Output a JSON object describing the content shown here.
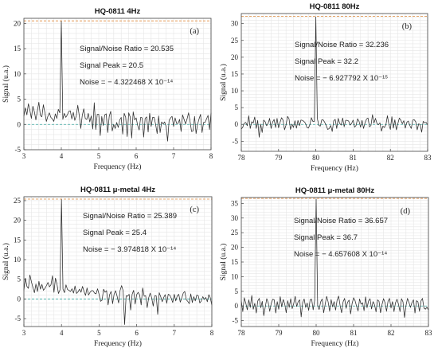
{
  "chart_data": [
    {
      "type": "line",
      "title": "HQ-0811 4Hz",
      "panel_label": "(a)",
      "xlabel": "Frequency (Hz)",
      "ylabel": "Signal (u.a.)",
      "xlim": [
        3,
        8
      ],
      "ylim": [
        -5,
        21
      ],
      "xticks": [
        "3",
        "4",
        "5",
        "6",
        "7",
        "8"
      ],
      "yticks": [
        "-5",
        "0",
        "5",
        "10",
        "15",
        "20"
      ],
      "yticks_values": [
        -5,
        0,
        5,
        10,
        15,
        20
      ],
      "grid": true,
      "annotations": [
        "Signal/Noise Ratio = 20.535",
        "Signal Peak = 20.5",
        "Noise = − 4.322468 X 10⁻¹⁴"
      ],
      "peak_line": 20.5,
      "noise_line": 0,
      "series": [
        {
          "x_start": 3,
          "x_step": 0.04,
          "values": [
            1.6,
            3.3,
            1.9,
            4.1,
            2.8,
            1.2,
            3.6,
            2.5,
            0.9,
            2.7,
            4.4,
            1.8,
            1.5,
            3.9,
            2.4,
            0.6,
            1.6,
            2.3,
            1.4,
            1.1,
            0.6,
            2.1,
            1.2,
            3.0,
            2.3,
            20.4,
            1.0,
            2.2,
            1.4,
            1.9,
            2.6,
            2.7,
            1.1,
            2.4,
            0.8,
            1.7,
            3.8,
            1.7,
            -0.8,
            1.8,
            3.1,
            1.2,
            1.0,
            2.2,
            0.5,
            1.7,
            -0.9,
            4.3,
            -1.0,
            2.0,
            2.0,
            -2.2,
            1.6,
            -0.2,
            1.9,
            2.1,
            -1.6,
            1.6,
            2.6,
            -1.3,
            0.0,
            -0.8,
            0.4,
            -0.6,
            0.9,
            1.4,
            -1.9,
            2.2,
            1.4,
            -2.4,
            2.3,
            1.5,
            -2.7,
            2.5,
            0.9,
            1.3,
            -0.2,
            -1.1,
            1.4,
            1.3,
            -2.5,
            1.2,
            1.5,
            -1.5,
            2.2,
            -0.4,
            1.4,
            1.4,
            0.0,
            -1.8,
            1.7,
            -1.6,
            0.5,
            0.1,
            0.5,
            -0.4,
            -3.3,
            0.8,
            1.3,
            1.6,
            -0.4,
            1.3,
            0.2,
            0.2,
            1.0,
            -1.4,
            1.9,
            1.0,
            0.1,
            1.1,
            2.3,
            0.6,
            -1.4,
            -1.3,
            1.6,
            -1.8,
            0.0,
            1.1,
            2.0,
            -1.6,
            0.4,
            0.4,
            1.1,
            1.8,
            -1.0,
            2.3
          ]
        }
      ]
    },
    {
      "type": "line",
      "title": "HQ-0811 80Hz",
      "panel_label": "(b)",
      "xlabel": "Frequency (Hz)",
      "ylabel": "Signal (u.a.)",
      "xlim": [
        78,
        83
      ],
      "ylim": [
        -8,
        33
      ],
      "xticks": [
        "78",
        "79",
        "80",
        "81",
        "82",
        "83"
      ],
      "yticks": [
        "-5",
        "0",
        "5",
        "10",
        "15",
        "20",
        "25",
        "30"
      ],
      "yticks_values": [
        -5,
        0,
        5,
        10,
        15,
        20,
        25,
        30
      ],
      "grid": true,
      "annotations": [
        "Signal/Noise Ratio = 32.236",
        "Signal Peak = 32.2",
        "Noise = − 6.927792 X 10⁻¹⁵"
      ],
      "peak_line": 32.2,
      "noise_line": 0,
      "series": [
        {
          "x_start": 78,
          "x_step": 0.04,
          "values": [
            -1.4,
            -0.8,
            0.4,
            0.6,
            -0.4,
            2.6,
            -1.2,
            0.8,
            0.4,
            2.2,
            -1.2,
            1.2,
            -3.8,
            0.1,
            -2.4,
            1.3,
            0.8,
            -0.4,
            0.3,
            1.8,
            -1.2,
            0.7,
            1.5,
            -0.9,
            1.8,
            -1.0,
            0.6,
            2.0,
            1.3,
            -1.6,
            -0.2,
            2.4,
            1.7,
            -1.5,
            0.1,
            -0.9,
            1.1,
            -1.1,
            1.2,
            -0.4,
            1.3,
            1.2,
            0.9,
            0.4,
            -0.9,
            -1.1,
            -0.1,
            2.0,
            0.9,
            0.9,
            32.0,
            1.8,
            -0.3,
            -0.5,
            1.4,
            1.3,
            0.6,
            -0.4,
            -1.5,
            -1.2,
            -0.3,
            -2.1,
            1.1,
            1.5,
            -1.2,
            1.8,
            0.3,
            -0.2,
            1.9,
            -0.7,
            1.2,
            1.2,
            1.0,
            -0.2,
            0.3,
            1.3,
            -0.8,
            -0.3,
            1.7,
            0.9,
            -0.8,
            1.2,
            -1.2,
            0.5,
            1.6,
            1.9,
            -0.7,
            -0.3,
            2.9,
            0.4,
            1.8,
            0.3,
            -0.1,
            0.5,
            -2.0,
            -0.5,
            -0.9,
            -0.1,
            2.6,
            0.0,
            -1.5,
            2.3,
            -1.1,
            1.4,
            -1.6,
            0.2,
            1.9,
            1.3,
            0.2,
            1.1,
            -1.1,
            0.6,
            1.0,
            -0.3,
            -1.2,
            1.3,
            1.4,
            0.8,
            -1.6,
            0.2,
            -0.1,
            -2.3,
            0.9,
            0.5,
            0.6,
            -0.2
          ]
        }
      ]
    },
    {
      "type": "line",
      "title": "HQ-0811 μ-metal 4Hz",
      "panel_label": "(c)",
      "xlabel": "Frequency (Hz)",
      "ylabel": "Signal (u.a.)",
      "xlim": [
        3,
        8
      ],
      "ylim": [
        -7,
        26
      ],
      "xticks": [
        "3",
        "4",
        "5",
        "6",
        "7",
        "8"
      ],
      "yticks": [
        "-5",
        "0",
        "5",
        "10",
        "15",
        "20",
        "25"
      ],
      "yticks_values": [
        -5,
        0,
        5,
        10,
        15,
        20,
        25
      ],
      "grid": true,
      "annotations": [
        "Signal/Noise Ratio = 25.389",
        "Signal Peak = 25.4",
        "Noise = − 3.974818 X 10⁻¹⁴"
      ],
      "peak_line": 25.4,
      "noise_line": 0,
      "series": [
        {
          "x_start": 3,
          "x_step": 0.04,
          "values": [
            2.2,
            5.3,
            3.2,
            2.7,
            6.1,
            4.4,
            2.9,
            1.6,
            3.8,
            1.9,
            4.5,
            2.5,
            3.7,
            2.2,
            2.7,
            3.4,
            4.2,
            3.1,
            3.6,
            5.9,
            1.7,
            5.3,
            3.8,
            1.4,
            2.3,
            25.3,
            2.5,
            1.6,
            3.6,
            2.4,
            2.2,
            1.9,
            2.6,
            1.5,
            3.3,
            1.4,
            1.8,
            2.5,
            1.7,
            3.2,
            1.9,
            0.9,
            2.8,
            1.0,
            1.7,
            2.1,
            2.1,
            1.5,
            1.3,
            2.6,
            1.2,
            -0.6,
            -0.3,
            2.5,
            1.7,
            2.1,
            -1.5,
            1.1,
            1.9,
            -1.2,
            1.2,
            2.1,
            0.7,
            -1.0,
            2.2,
            3.4,
            2.1,
            -6.5,
            0.8,
            0.7,
            1.2,
            -2.8,
            1.2,
            2.2,
            -1.3,
            1.1,
            1.7,
            1.0,
            -1.5,
            2.8,
            0.7,
            0.8,
            -2.2,
            0.3,
            1.5,
            0.3,
            -1.8,
            0.8,
            0.8,
            -3.9,
            1.6,
            0.6,
            -0.7,
            0.4,
            1.1,
            -1.1,
            1.2,
            1.0,
            0.2,
            -0.9,
            1.2,
            -0.5,
            0.8,
            1.2,
            -0.8,
            0.2,
            1.5,
            1.9,
            -0.2,
            -0.6,
            -1.2,
            1.3,
            -0.9,
            0.6,
            -0.5,
            1.0,
            0.8,
            -1.0,
            -0.5,
            0.6,
            -0.1,
            0.4,
            -0.7,
            1.1,
            0.3,
            -1.6
          ]
        }
      ]
    },
    {
      "type": "line",
      "title": "HQ-0811 μ-metal 80Hz",
      "panel_label": "(d)",
      "xlabel": "Frequency (Hz)",
      "ylabel": "Signal (u.a.)",
      "xlim": [
        78,
        83
      ],
      "ylim": [
        -7,
        37
      ],
      "xticks": [
        "78",
        "79",
        "80",
        "81",
        "82",
        "83"
      ],
      "yticks": [
        "-5",
        "0",
        "5",
        "10",
        "15",
        "20",
        "25",
        "30",
        "35"
      ],
      "yticks_values": [
        -5,
        0,
        5,
        10,
        15,
        20,
        25,
        30,
        35
      ],
      "grid": true,
      "annotations": [
        "Signal/Noise Ratio = 36.657",
        "Signal Peak = 36.7",
        "Noise = − 4.657608 X 10⁻¹⁴"
      ],
      "peak_line": 36.7,
      "noise_line": 0,
      "series": [
        {
          "x_start": 78,
          "x_step": 0.04,
          "values": [
            1.8,
            -1.9,
            2.8,
            1.0,
            -1.3,
            2.1,
            -0.5,
            3.6,
            -1.1,
            0.9,
            -2.4,
            1.7,
            2.6,
            -0.6,
            1.6,
            -3.3,
            -0.4,
            2.5,
            1.1,
            -1.8,
            0.9,
            2.3,
            2.1,
            -2.4,
            1.5,
            -1.1,
            3.2,
            -0.3,
            2.2,
            0.7,
            -2.3,
            1.8,
            -0.5,
            2.5,
            -0.9,
            0.8,
            3.3,
            -0.2,
            1.5,
            2.1,
            -3.7,
            1.2,
            2.4,
            -0.5,
            1.0,
            -1.5,
            2.2,
            2.3,
            -1.3,
            1.9,
            36.5,
            0.2,
            -1.2,
            1.4,
            2.4,
            -2.3,
            0.5,
            3.3,
            1.4,
            -1.8,
            2.2,
            -0.3,
            1.5,
            -1.4,
            2.0,
            3.4,
            0.2,
            -2.3,
            1.4,
            2.6,
            -0.8,
            1.3,
            2.0,
            -2.7,
            0.8,
            2.8,
            1.8,
            -0.1,
            -1.7,
            2.4,
            0.6,
            1.1,
            -1.6,
            3.1,
            -0.6,
            1.7,
            2.5,
            -1.0,
            1.5,
            0.4,
            -2.0,
            2.1,
            1.6,
            -2.3,
            0.5,
            2.5,
            1.1,
            -1.8,
            1.6,
            2.6,
            -0.7,
            1.5,
            -1.9,
            1.1,
            2.3,
            0.6,
            -1.9,
            2.5,
            1.4,
            -3.9,
            0.1,
            2.6,
            1.2,
            -0.5,
            1.2,
            2.1,
            -2.4,
            1.8,
            1.4,
            -1.8,
            1.7,
            2.6,
            -0.7,
            -1.1,
            -0.4,
            -1.4
          ]
        }
      ]
    }
  ]
}
